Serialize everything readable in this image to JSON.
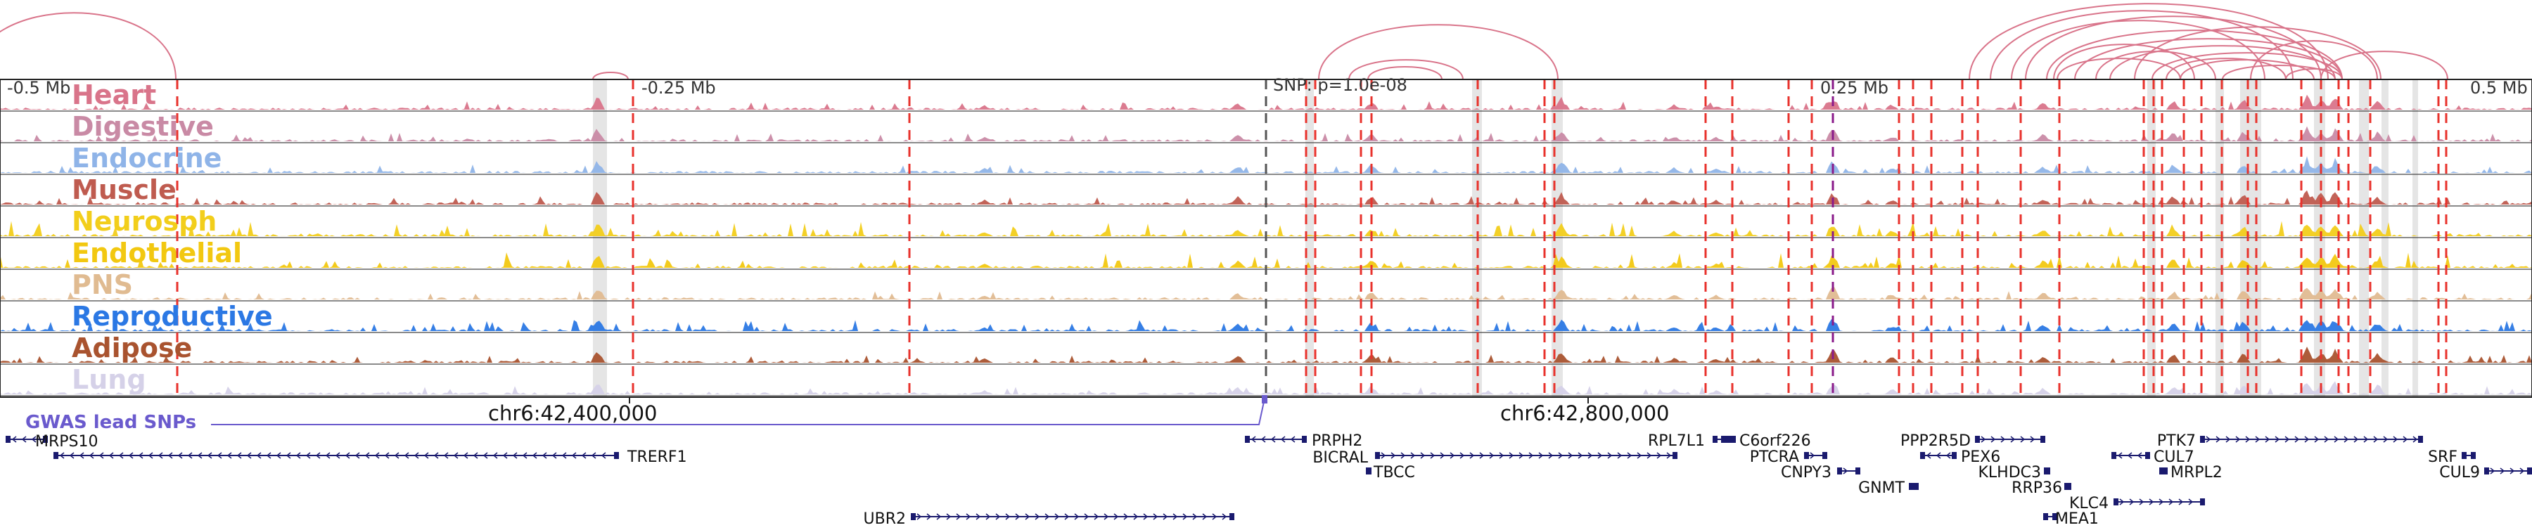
{
  "scale": {
    "left_label": "-0.5 Mb",
    "left_mid_label": "-0.25 Mb",
    "snp_label": "SNP: p=1.0e-08",
    "right_mid_label": "0.25 Mb",
    "right_label": "0.5 Mb"
  },
  "tracks": [
    {
      "name": "Heart",
      "color": "#d9748a"
    },
    {
      "name": "Digestive",
      "color": "#c98aa5"
    },
    {
      "name": "Endocrine",
      "color": "#8fb4e8"
    },
    {
      "name": "Muscle",
      "color": "#bf5b4f"
    },
    {
      "name": "Neurosph",
      "color": "#f2ce1b"
    },
    {
      "name": "Endothelial",
      "color": "#f2c811"
    },
    {
      "name": "PNS",
      "color": "#e0bb91"
    },
    {
      "name": "Reproductive",
      "color": "#2b78e4"
    },
    {
      "name": "Adipose",
      "color": "#a9532f"
    },
    {
      "name": "Lung",
      "color": "#d5d1e8"
    }
  ],
  "coordinates": {
    "left": "chr6:42,400,000",
    "right": "chr6:42,800,000"
  },
  "gwas_label": "GWAS lead SNPs",
  "genes": [
    {
      "name": "MRPS10",
      "strand": "-"
    },
    {
      "name": "TRERF1",
      "strand": "-"
    },
    {
      "name": "UBR2",
      "strand": "+"
    },
    {
      "name": "PRPH2",
      "strand": "-"
    },
    {
      "name": "BICRAL",
      "strand": "+"
    },
    {
      "name": "TBCC",
      "strand": "+"
    },
    {
      "name": "RPL7L1",
      "strand": "+"
    },
    {
      "name": "C6orf226",
      "strand": "+"
    },
    {
      "name": "PTCRA",
      "strand": "+"
    },
    {
      "name": "CNPY3",
      "strand": "+"
    },
    {
      "name": "GNMT",
      "strand": "+"
    },
    {
      "name": "PPP2R5D",
      "strand": "+"
    },
    {
      "name": "PEX6",
      "strand": "-"
    },
    {
      "name": "KLHDC3",
      "strand": "+"
    },
    {
      "name": "RRP36",
      "strand": "+"
    },
    {
      "name": "KLC4",
      "strand": "+"
    },
    {
      "name": "MEA1",
      "strand": "-"
    },
    {
      "name": "PTK7",
      "strand": "+"
    },
    {
      "name": "CUL7",
      "strand": "-"
    },
    {
      "name": "MRPL2",
      "strand": "-"
    },
    {
      "name": "SRF",
      "strand": "+"
    },
    {
      "name": "CUL9",
      "strand": "+"
    }
  ],
  "colors": {
    "arc": "#d9748a",
    "snp_line": "#e8322c",
    "highlight": "#cfcfcf",
    "gene": "#1a1a6e",
    "gwas": "#6a5acd"
  }
}
